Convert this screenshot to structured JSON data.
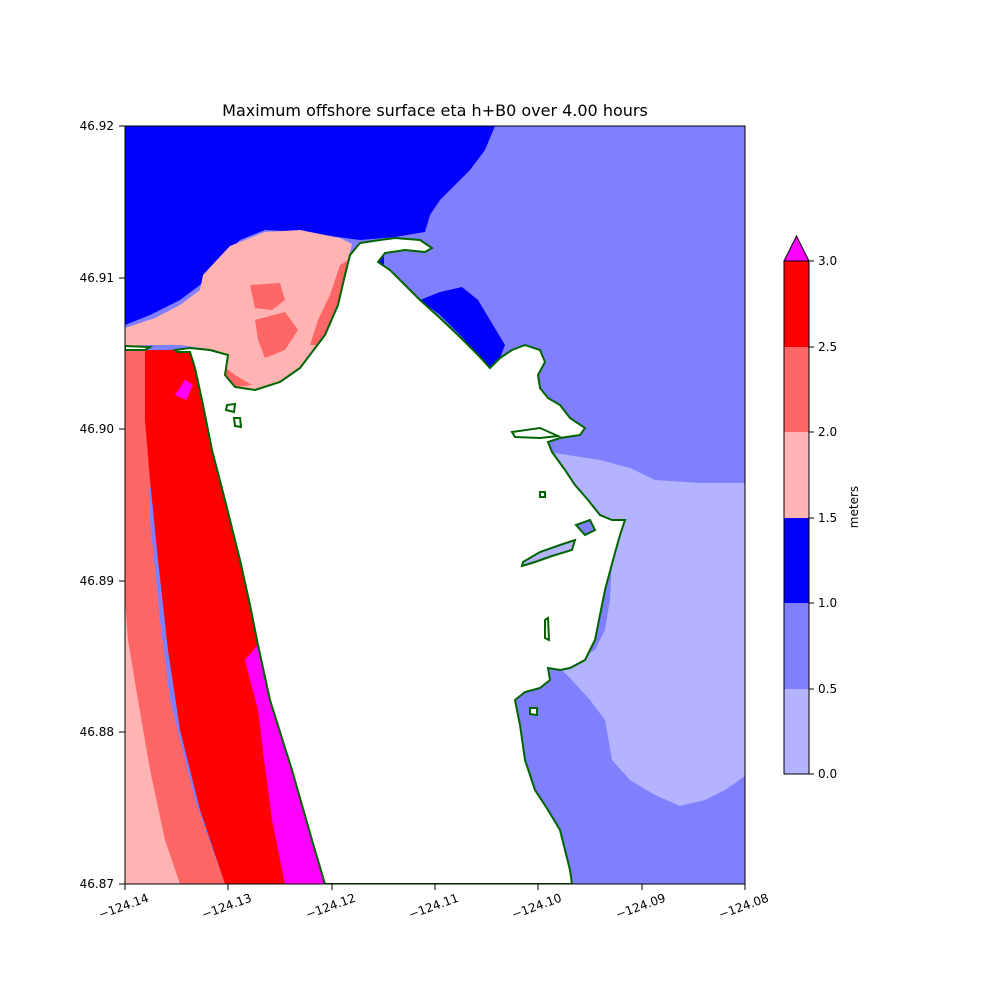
{
  "title": "Maximum offshore surface eta h+B0 over 4.00 hours",
  "x_ticks": [
    "−124.14",
    "−124.13",
    "−124.12",
    "−124.11",
    "−124.10",
    "−124.09",
    "−124.08"
  ],
  "y_ticks": [
    "46.92",
    "46.91",
    "46.90",
    "46.89",
    "46.88",
    "46.87"
  ],
  "colorbar": {
    "label": "meters",
    "ticks": [
      "3.0",
      "2.5",
      "2.0",
      "1.5",
      "1.0",
      "0.5",
      "0.0"
    ],
    "levels": [
      {
        "range": [
          0.0,
          0.5
        ],
        "color": "#b3b3ff"
      },
      {
        "range": [
          0.5,
          1.0
        ],
        "color": "#8080ff"
      },
      {
        "range": [
          1.0,
          1.5
        ],
        "color": "#0000ff"
      },
      {
        "range": [
          1.5,
          2.0
        ],
        "color": "#ffb3b3"
      },
      {
        "range": [
          2.0,
          2.5
        ],
        "color": "#ff6666"
      },
      {
        "range": [
          2.5,
          3.0
        ],
        "color": "#ff0000"
      }
    ],
    "extend_max_color": "#ff00ff"
  },
  "coastline_color": "#006400",
  "land_color": "#ffffff",
  "lon_range": [
    -124.14,
    -124.08
  ],
  "lat_range": [
    46.87,
    46.92
  ]
}
